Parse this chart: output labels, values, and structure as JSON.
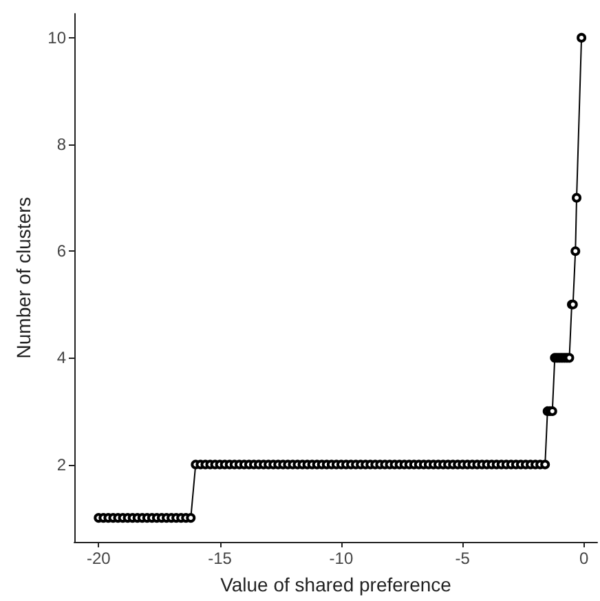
{
  "chart_data": {
    "type": "line",
    "xlabel": "Value of shared preference",
    "ylabel": "Number of clusters",
    "x": [
      -20,
      -19.8,
      -19.6,
      -19.4,
      -19.2,
      -19,
      -18.8,
      -18.6,
      -18.4,
      -18.2,
      -18,
      -17.8,
      -17.6,
      -17.4,
      -17.2,
      -17,
      -16.8,
      -16.6,
      -16.4,
      -16.2,
      -16,
      -15.8,
      -15.6,
      -15.4,
      -15.2,
      -15,
      -14.8,
      -14.6,
      -14.4,
      -14.2,
      -14,
      -13.8,
      -13.6,
      -13.4,
      -13.2,
      -13,
      -12.8,
      -12.6,
      -12.4,
      -12.2,
      -12,
      -11.8,
      -11.6,
      -11.4,
      -11.2,
      -11,
      -10.8,
      -10.6,
      -10.4,
      -10.2,
      -10,
      -9.8,
      -9.6,
      -9.4,
      -9.2,
      -9,
      -8.8,
      -8.6,
      -8.4,
      -8.2,
      -8,
      -7.8,
      -7.6,
      -7.4,
      -7.2,
      -7,
      -6.8,
      -6.6,
      -6.4,
      -6.2,
      -6,
      -5.8,
      -5.6,
      -5.4,
      -5.2,
      -5,
      -4.8,
      -4.6,
      -4.4,
      -4.2,
      -4,
      -3.8,
      -3.6,
      -3.4,
      -3.2,
      -3,
      -2.8,
      -2.6,
      -2.4,
      -2.2,
      -2,
      -1.8,
      -1.6,
      -1.5,
      -1.4,
      -1.3,
      -1.2,
      -1.1,
      -1,
      -0.9,
      -0.8,
      -0.7,
      -0.6,
      -0.5,
      -0.45,
      -0.35,
      -0.3,
      -0.1
    ],
    "series": [
      {
        "color": "#000000",
        "values": [
          1,
          1,
          1,
          1,
          1,
          1,
          1,
          1,
          1,
          1,
          1,
          1,
          1,
          1,
          1,
          1,
          1,
          1,
          1,
          1,
          2,
          2,
          2,
          2,
          2,
          2,
          2,
          2,
          2,
          2,
          2,
          2,
          2,
          2,
          2,
          2,
          2,
          2,
          2,
          2,
          2,
          2,
          2,
          2,
          2,
          2,
          2,
          2,
          2,
          2,
          2,
          2,
          2,
          2,
          2,
          2,
          2,
          2,
          2,
          2,
          2,
          2,
          2,
          2,
          2,
          2,
          2,
          2,
          2,
          2,
          2,
          2,
          2,
          2,
          2,
          2,
          2,
          2,
          2,
          2,
          2,
          2,
          2,
          2,
          2,
          2,
          2,
          2,
          2,
          2,
          2,
          2,
          2,
          3,
          3,
          3,
          4,
          4,
          4,
          4,
          4,
          4,
          4,
          5,
          5,
          6,
          7,
          10
        ]
      }
    ],
    "xlim": [
      -21,
      0.55
    ],
    "ylim": [
      0.55,
      10.45
    ],
    "xticks": [
      -20,
      -15,
      -10,
      -5,
      0
    ],
    "yticks": [
      2,
      4,
      6,
      8,
      10
    ],
    "grid": false,
    "marker": "circle",
    "line_style": "solid"
  }
}
